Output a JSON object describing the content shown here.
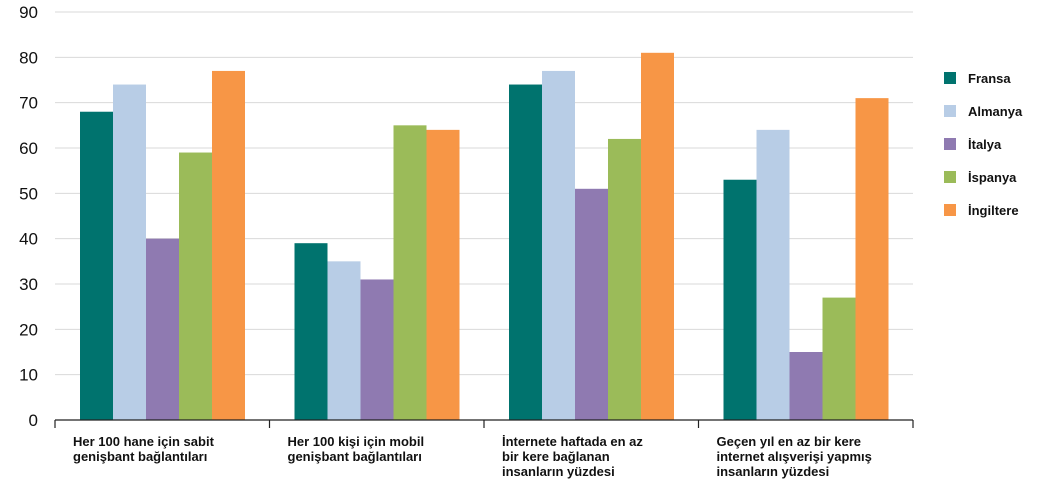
{
  "chart_data": {
    "type": "bar",
    "title": "",
    "xlabel": "",
    "ylabel": "",
    "ylim": [
      0,
      90
    ],
    "yticks": [
      0,
      10,
      20,
      30,
      40,
      50,
      60,
      70,
      80,
      90
    ],
    "grid": true,
    "legend_position": "right",
    "categories": [
      [
        "Her 100 hane için sabit",
        "genişbant bağlantıları"
      ],
      [
        "Her 100 kişi için mobil",
        "genişbant bağlantıları"
      ],
      [
        "İnternete haftada en az",
        "bir kere bağlanan",
        "insanların yüzdesi"
      ],
      [
        "Geçen yıl en az bir kere",
        "internet alışverişi yapmış",
        "insanların yüzdesi"
      ]
    ],
    "series": [
      {
        "name": "Fransa",
        "color": "#00736e",
        "values": [
          68,
          39,
          74,
          53
        ]
      },
      {
        "name": "Almanya",
        "color": "#b8cde6",
        "values": [
          74,
          35,
          77,
          64
        ]
      },
      {
        "name": "İtalya",
        "color": "#8f7ab1",
        "values": [
          40,
          31,
          51,
          15
        ]
      },
      {
        "name": "İspanya",
        "color": "#9bbb59",
        "values": [
          59,
          65,
          62,
          27
        ]
      },
      {
        "name": "İngiltere",
        "color": "#f79646",
        "values": [
          77,
          64,
          81,
          71
        ]
      }
    ]
  }
}
